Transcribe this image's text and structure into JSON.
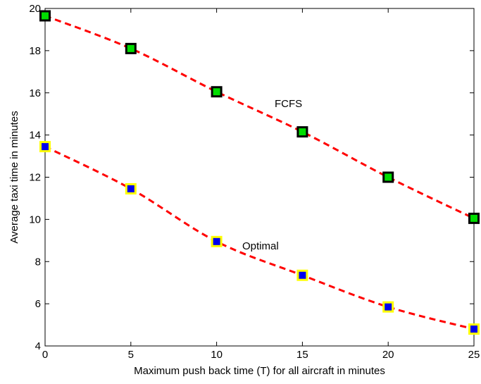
{
  "chart_data": {
    "type": "line",
    "xlabel": "Maximum push back time (T) for all aircraft in minutes",
    "ylabel": "Average taxi time in minutes",
    "xlim": [
      0,
      25
    ],
    "ylim": [
      4,
      20
    ],
    "xticks": [
      0,
      5,
      10,
      15,
      20,
      25
    ],
    "yticks": [
      4,
      6,
      8,
      10,
      12,
      14,
      16,
      18,
      20
    ],
    "grid": false,
    "legend": "none",
    "x": [
      0,
      5,
      10,
      15,
      20,
      25
    ],
    "series": [
      {
        "label": "FCFS",
        "values": [
          19.65,
          18.1,
          16.05,
          14.15,
          12.0,
          10.05
        ],
        "line_color": "#ff0000",
        "marker": "square",
        "marker_fill": "#00dd00",
        "marker_edge": "#000000"
      },
      {
        "label": "Optimal",
        "values": [
          13.45,
          11.45,
          8.95,
          7.35,
          5.85,
          4.8
        ],
        "line_color": "#ff0000",
        "marker": "square",
        "marker_fill": "#0000ee",
        "marker_edge": "#ffff00"
      }
    ]
  }
}
